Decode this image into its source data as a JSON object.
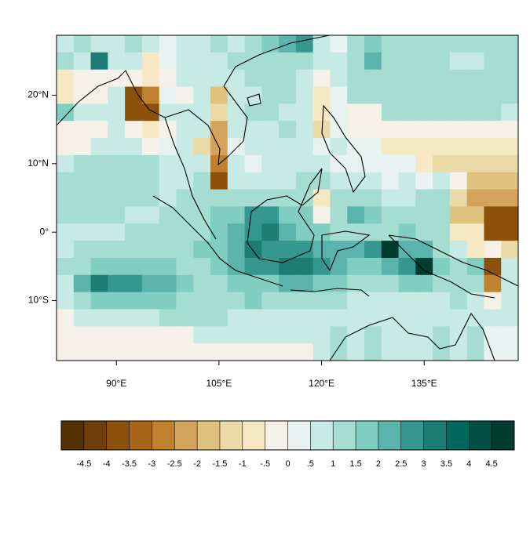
{
  "chart_data": {
    "type": "heatmap",
    "x": [
      82.5,
      85,
      87.5,
      90,
      92.5,
      95,
      97.5,
      100,
      102.5,
      105,
      107.5,
      110,
      112.5,
      115,
      117.5,
      120,
      122.5,
      125,
      127.5,
      130,
      132.5,
      135,
      137.5,
      140,
      142.5,
      145,
      147.5
    ],
    "y": [
      27.5,
      25,
      22.5,
      20,
      17.5,
      15,
      12.5,
      10,
      7.5,
      5,
      2.5,
      0,
      -2.5,
      -5,
      -7.5,
      -10,
      -12.5,
      -15,
      -17.5
    ],
    "xlim": [
      81.25,
      148.75
    ],
    "ylim": [
      -18.75,
      28.75
    ],
    "xticks": [
      {
        "value": 90,
        "label": "90°E"
      },
      {
        "value": 105,
        "label": "105°E"
      },
      {
        "value": 120,
        "label": "120°E"
      },
      {
        "value": 135,
        "label": "135°E"
      }
    ],
    "yticks": [
      {
        "value": 20,
        "label": "20°N"
      },
      {
        "value": 10,
        "label": "10°N"
      },
      {
        "value": 0,
        "label": "0°"
      },
      {
        "value": -10,
        "label": "10°S"
      }
    ],
    "values": [
      [
        0.5,
        1,
        0.5,
        0.5,
        1,
        0.5,
        0,
        0.5,
        0.5,
        1,
        0.5,
        1,
        1.5,
        2,
        2.5,
        0.5,
        0,
        1,
        1.5,
        1,
        1,
        1,
        1,
        1,
        1,
        1,
        1
      ],
      [
        1,
        0.5,
        3,
        0.5,
        0.5,
        -1,
        0,
        0.5,
        0.5,
        0.5,
        1,
        1,
        1,
        1,
        1,
        0.5,
        0.5,
        1,
        2,
        1,
        1,
        1,
        1,
        0.5,
        0.5,
        1,
        1
      ],
      [
        -1,
        -0.5,
        -0.5,
        -0.5,
        -0.5,
        -1,
        -0.5,
        0.5,
        0.5,
        0.5,
        0.5,
        1,
        1,
        1,
        0.5,
        -0.5,
        0.5,
        1,
        1,
        1,
        1,
        1,
        1,
        1,
        1,
        1,
        1
      ],
      [
        -1,
        -0.5,
        -0.5,
        0.5,
        -4,
        -3,
        0,
        -0.5,
        0.5,
        -2,
        0.5,
        0.5,
        1,
        1,
        0.5,
        -1,
        0,
        1,
        1,
        1,
        1,
        1,
        1,
        1,
        1,
        1,
        1
      ],
      [
        1.5,
        0.5,
        0.5,
        0.5,
        -4,
        -4,
        0.5,
        0.5,
        0.5,
        -1.5,
        0.5,
        1,
        1,
        0.5,
        0.5,
        -1,
        0,
        -0.5,
        -0.5,
        1,
        1,
        1,
        1,
        1,
        1,
        1,
        0.5
      ],
      [
        -0.5,
        -0.5,
        -0.5,
        0.5,
        -0.5,
        -1,
        -0.5,
        0.5,
        0.5,
        -2.5,
        0.5,
        0.5,
        0.5,
        1,
        0.5,
        -1.5,
        0,
        -0.5,
        -0.5,
        -0.5,
        -0.5,
        -0.5,
        -0.5,
        -0.5,
        -0.5,
        -0.5,
        -0.5
      ],
      [
        -0.5,
        -0.5,
        0.5,
        0.5,
        0.5,
        -0.5,
        0,
        0.5,
        -1.5,
        -2.5,
        0,
        0.5,
        0.5,
        0.5,
        0.5,
        0,
        0.5,
        0,
        0,
        -1,
        -1,
        -1,
        -1,
        -1,
        -1,
        -1,
        -1
      ],
      [
        0.5,
        1,
        1,
        1,
        1,
        1,
        0.5,
        0.5,
        0.5,
        -3,
        0.5,
        0,
        0.5,
        0.5,
        0.5,
        0.5,
        0,
        0,
        0,
        0,
        0,
        -1,
        -1.5,
        -1.5,
        -1.5,
        -1.5,
        -1.5
      ],
      [
        1,
        1,
        1,
        1,
        1,
        1,
        0.5,
        0.5,
        1,
        -4,
        0.5,
        0.5,
        0.5,
        0.5,
        1,
        1,
        0.5,
        0.5,
        0.5,
        0,
        0.5,
        0,
        0.5,
        -0.5,
        -2,
        -2,
        -2
      ],
      [
        1,
        1,
        1,
        1,
        1,
        1,
        0.5,
        1,
        1,
        1,
        1,
        1,
        1,
        1,
        1,
        -1,
        1,
        1,
        1,
        0.5,
        0.5,
        1,
        1,
        -1.5,
        -2.5,
        -2.5,
        -2.5
      ],
      [
        1,
        1,
        1,
        1,
        0.5,
        0.5,
        1,
        1,
        1,
        1.5,
        1.5,
        2.5,
        2.5,
        1.5,
        1.5,
        -0.5,
        1,
        2,
        1.5,
        1,
        1,
        1,
        1,
        -2,
        -2,
        -4,
        -4
      ],
      [
        0.5,
        0.5,
        0.5,
        0.5,
        1,
        1,
        1,
        1,
        1,
        1.5,
        2,
        2.5,
        3,
        2,
        1.5,
        1.5,
        1,
        1,
        1,
        1,
        1.5,
        1,
        1,
        -1,
        -1,
        -4,
        -4
      ],
      [
        0.5,
        1,
        1,
        1,
        1,
        1,
        1,
        1,
        1.5,
        1.5,
        2,
        3,
        2.5,
        2.5,
        2.5,
        2,
        2,
        2,
        2.5,
        4.5,
        2,
        2,
        1,
        0.5,
        -1,
        -0.5,
        -1.5
      ],
      [
        1,
        1,
        1.5,
        1.5,
        1.5,
        1.5,
        1.5,
        1,
        1,
        1.5,
        2,
        2.5,
        2.5,
        3,
        3,
        2.5,
        2,
        1.5,
        1.5,
        2,
        2.5,
        4.5,
        1.5,
        1,
        1.5,
        -4,
        0.5
      ],
      [
        0.5,
        2,
        3,
        2.5,
        2.5,
        2,
        2,
        1.5,
        1,
        1,
        1.5,
        1.5,
        1.5,
        2,
        2,
        1.5,
        1.5,
        1,
        1,
        1,
        1.5,
        1.5,
        1,
        1,
        1,
        -3,
        0.5
      ],
      [
        0.5,
        1,
        1.5,
        1.5,
        1.5,
        1.5,
        1.5,
        1,
        1,
        1,
        1,
        1.5,
        1,
        1,
        1,
        1,
        1,
        0.5,
        0.5,
        0.5,
        0.5,
        0.5,
        0.5,
        1,
        0.5,
        -0.5,
        0.5
      ],
      [
        -0.5,
        0.5,
        0.5,
        0.5,
        0.5,
        0.5,
        1,
        1,
        1,
        1,
        0.5,
        0.5,
        0.5,
        0.5,
        0.5,
        0.5,
        0.5,
        0.5,
        0.5,
        0.5,
        0.5,
        0.5,
        0.5,
        0.5,
        0.5,
        0.5,
        0.5
      ],
      [
        -0.5,
        -0.5,
        -0.5,
        -0.5,
        -0.5,
        -0.5,
        -0.5,
        -0.5,
        0.5,
        0.5,
        0.5,
        0.5,
        0.5,
        0.5,
        0.5,
        0.5,
        1,
        0.5,
        1,
        0.5,
        0.5,
        0.5,
        1,
        0.5,
        1,
        0,
        0
      ],
      [
        -0.5,
        -0.5,
        -0.5,
        -0.5,
        -0.5,
        -0.5,
        -0.5,
        -0.5,
        -0.5,
        -0.5,
        -0.5,
        -0.5,
        -0.5,
        -0.5,
        -0.5,
        0.5,
        1,
        0.5,
        1,
        0.5,
        0.5,
        0.5,
        1,
        0.5,
        1,
        0,
        0
      ]
    ],
    "levels": [
      -4.5,
      -4,
      -3.5,
      -3,
      -2.5,
      -2,
      -1.5,
      -1,
      {
        "value": -0.5,
        "label": "-.5"
      },
      0,
      {
        "value": 0.5,
        "label": ".5"
      },
      1,
      1.5,
      2,
      2.5,
      3,
      3.5,
      4,
      4.5
    ],
    "colors": [
      "#543005",
      "#6e3f0a",
      "#8c510a",
      "#a8661c",
      "#bf812d",
      "#d4a45c",
      "#dfc27d",
      "#ecd9a8",
      "#f6e8c3",
      "#f5f1e8",
      "#e8f3f1",
      "#c7eae5",
      "#a6ddd3",
      "#80cdc1",
      "#5ab4ac",
      "#35978f",
      "#1d7d75",
      "#01665e",
      "#014f45",
      "#003c30"
    ]
  }
}
